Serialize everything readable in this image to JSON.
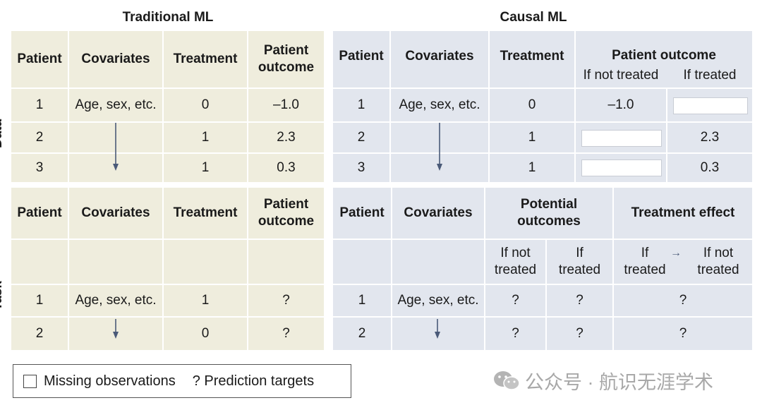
{
  "titles": {
    "left": "Traditional ML",
    "right": "Causal ML"
  },
  "side_labels": {
    "data": "Data",
    "task": "Task"
  },
  "headers": {
    "patient": "Patient",
    "covariates": "Covariates",
    "treatment": "Treatment",
    "patient_outcome": "Patient outcome",
    "patient_outcome_split": "Patient out​come",
    "if_not_treated": "If not treated",
    "if_treated": "If treated",
    "potential_outcomes": "Potential outcomes",
    "treatment_effect": "Treatment effect",
    "arrow": "→"
  },
  "trad_data": [
    {
      "patient": "1",
      "covariates": "Age, sex, etc.",
      "treatment": "0",
      "outcome": "–1.0"
    },
    {
      "patient": "2",
      "covariates": "",
      "treatment": "1",
      "outcome": "2.3"
    },
    {
      "patient": "3",
      "covariates": "",
      "treatment": "1",
      "outcome": "0.3"
    }
  ],
  "causal_data": [
    {
      "patient": "1",
      "covariates": "Age, sex, etc.",
      "treatment": "0",
      "if_not_treated": "–1.0",
      "if_treated": ""
    },
    {
      "patient": "2",
      "covariates": "",
      "treatment": "1",
      "if_not_treated": "",
      "if_treated": "2.3"
    },
    {
      "patient": "3",
      "covariates": "",
      "treatment": "1",
      "if_not_treated": "",
      "if_treated": "0.3"
    }
  ],
  "trad_task": [
    {
      "patient": "1",
      "covariates": "Age, sex, etc.",
      "treatment": "1",
      "outcome": "?"
    },
    {
      "patient": "2",
      "covariates": "",
      "treatment": "0",
      "outcome": "?"
    }
  ],
  "causal_task": [
    {
      "patient": "1",
      "covariates": "Age, sex, etc.",
      "if_not_treated": "?",
      "if_treated": "?",
      "effect": "?"
    },
    {
      "patient": "2",
      "covariates": "",
      "if_not_treated": "?",
      "if_treated": "?",
      "effect": "?"
    }
  ],
  "legend": {
    "missing": "Missing observations",
    "targets": "? Prediction targets"
  },
  "watermark": "公众号 · 航识无涯学术",
  "colors": {
    "traditional_bg": "#efeddd",
    "causal_bg": "#e2e6ee",
    "arrow": "#4a5a78"
  }
}
